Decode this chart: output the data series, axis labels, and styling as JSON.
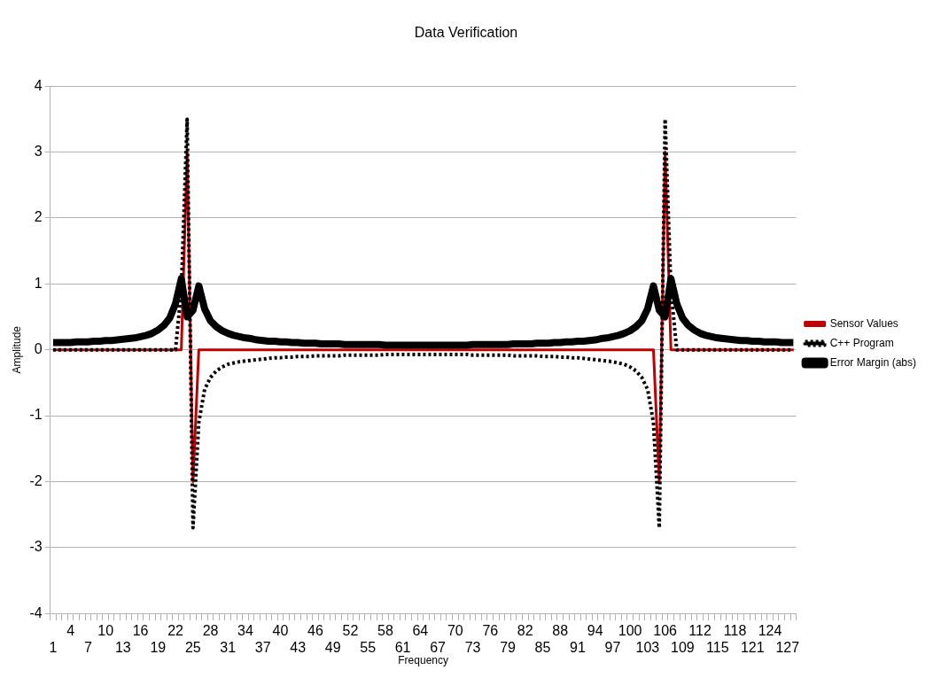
{
  "chart_data": {
    "type": "line",
    "title": "Data Verification",
    "xlabel": "Frequency",
    "ylabel": "Amplitude",
    "categories": [
      "1",
      null,
      null,
      "4",
      null,
      null,
      "7",
      null,
      null,
      "10",
      null,
      null,
      "13",
      null,
      null,
      "16",
      null,
      null,
      "19",
      null,
      null,
      "22",
      null,
      null,
      "25",
      null,
      null,
      "28",
      null,
      null,
      "31",
      null,
      null,
      "34",
      null,
      null,
      "37",
      null,
      null,
      "40",
      null,
      null,
      "43",
      null,
      null,
      "46",
      null,
      null,
      "49",
      null,
      null,
      "52",
      null,
      null,
      "55",
      null,
      null,
      "58",
      null,
      null,
      "61",
      null,
      null,
      "64",
      null,
      null,
      "67",
      null,
      null,
      "70",
      null,
      null,
      "73",
      null,
      null,
      "76",
      null,
      null,
      "79",
      null,
      null,
      "82",
      null,
      null,
      "85",
      null,
      null,
      "88",
      null,
      null,
      "91",
      null,
      null,
      "94",
      null,
      null,
      "97",
      null,
      null,
      "100",
      null,
      null,
      "103",
      null,
      null,
      "106",
      null,
      null,
      "109",
      null,
      null,
      "112",
      null,
      null,
      "115",
      null,
      null,
      "118",
      null,
      null,
      "121",
      null,
      null,
      "124",
      null,
      null,
      "127",
      null
    ],
    "ylim": [
      -4,
      4
    ],
    "yticks": [
      -4,
      -3,
      -2,
      -1,
      0,
      1,
      2,
      3,
      4
    ],
    "grid": "y",
    "legend": "right",
    "marker": "none",
    "series": [
      {
        "name": "Sensor Values",
        "color": "#c00000",
        "line_style": "solid",
        "values": [
          0,
          0,
          0,
          0,
          0,
          0,
          0,
          0,
          0,
          0,
          0,
          0,
          0,
          0,
          0,
          0,
          0,
          0,
          0,
          0,
          0,
          0,
          0,
          3,
          -2,
          0,
          0,
          0,
          0,
          0,
          0,
          0,
          0,
          0,
          0,
          0,
          0,
          0,
          0,
          0,
          0,
          0,
          0,
          0,
          0,
          0,
          0,
          0,
          0,
          0,
          0,
          0,
          0,
          0,
          0,
          0,
          0,
          0,
          0,
          0,
          0,
          0,
          0,
          0,
          0,
          0,
          0,
          0,
          0,
          0,
          0,
          0,
          0,
          0,
          0,
          0,
          0,
          0,
          0,
          0,
          0,
          0,
          0,
          0,
          0,
          0,
          0,
          0,
          0,
          0,
          0,
          0,
          0,
          0,
          0,
          0,
          0,
          0,
          0,
          0,
          0,
          0,
          0,
          0,
          -2,
          3,
          0,
          0,
          0,
          0,
          0,
          0,
          0,
          0,
          0,
          0,
          0,
          0,
          0,
          0,
          0,
          0,
          0,
          0,
          0,
          0,
          0,
          0
        ]
      },
      {
        "name": "C++ Program",
        "color": "#000000",
        "line_style": "dotted",
        "values": [
          0,
          0,
          0,
          0,
          0,
          0,
          0,
          0,
          0,
          0,
          0,
          0,
          0,
          0,
          0,
          0,
          0,
          0,
          0,
          0,
          0,
          0,
          0.9,
          3.5,
          -2.7,
          -1.1,
          -0.6,
          -0.42,
          -0.32,
          -0.26,
          -0.22,
          -0.2,
          -0.18,
          -0.17,
          -0.16,
          -0.15,
          -0.14,
          -0.13,
          -0.12,
          -0.12,
          -0.11,
          -0.11,
          -0.1,
          -0.1,
          -0.1,
          -0.09,
          -0.09,
          -0.09,
          -0.09,
          -0.09,
          -0.08,
          -0.08,
          -0.08,
          -0.08,
          -0.08,
          -0.08,
          -0.08,
          -0.07,
          -0.07,
          -0.07,
          -0.07,
          -0.07,
          -0.07,
          -0.07,
          -0.07,
          -0.07,
          -0.07,
          -0.07,
          -0.07,
          -0.07,
          -0.07,
          -0.07,
          -0.08,
          -0.08,
          -0.08,
          -0.08,
          -0.08,
          -0.08,
          -0.08,
          -0.09,
          -0.09,
          -0.09,
          -0.09,
          -0.09,
          -0.1,
          -0.1,
          -0.1,
          -0.11,
          -0.11,
          -0.12,
          -0.12,
          -0.13,
          -0.14,
          -0.15,
          -0.16,
          -0.17,
          -0.18,
          -0.2,
          -0.22,
          -0.26,
          -0.32,
          -0.42,
          -0.6,
          -1.1,
          -2.7,
          3.5,
          0.9,
          0,
          0,
          0,
          0,
          0,
          0,
          0,
          0,
          0,
          0,
          0,
          0,
          0,
          0,
          0,
          0,
          0,
          0,
          0,
          0,
          0
        ]
      },
      {
        "name": "Error Margin (abs)",
        "color": "#000000",
        "line_style": "solid",
        "values": [
          0.11,
          0.11,
          0.11,
          0.11,
          0.12,
          0.12,
          0.12,
          0.13,
          0.13,
          0.14,
          0.14,
          0.15,
          0.16,
          0.17,
          0.18,
          0.2,
          0.22,
          0.25,
          0.3,
          0.37,
          0.48,
          0.7,
          1.08,
          0.5,
          0.6,
          0.97,
          0.62,
          0.44,
          0.35,
          0.29,
          0.25,
          0.22,
          0.2,
          0.18,
          0.17,
          0.15,
          0.14,
          0.13,
          0.13,
          0.12,
          0.12,
          0.11,
          0.11,
          0.1,
          0.1,
          0.1,
          0.09,
          0.09,
          0.09,
          0.09,
          0.08,
          0.08,
          0.08,
          0.08,
          0.08,
          0.08,
          0.08,
          0.07,
          0.07,
          0.07,
          0.07,
          0.07,
          0.07,
          0.07,
          0.07,
          0.07,
          0.07,
          0.07,
          0.07,
          0.07,
          0.07,
          0.07,
          0.08,
          0.08,
          0.08,
          0.08,
          0.08,
          0.08,
          0.08,
          0.09,
          0.09,
          0.09,
          0.09,
          0.1,
          0.1,
          0.1,
          0.11,
          0.11,
          0.12,
          0.12,
          0.13,
          0.13,
          0.14,
          0.15,
          0.17,
          0.18,
          0.2,
          0.22,
          0.25,
          0.29,
          0.35,
          0.44,
          0.62,
          0.97,
          0.6,
          0.5,
          1.08,
          0.7,
          0.48,
          0.37,
          0.3,
          0.25,
          0.22,
          0.2,
          0.18,
          0.17,
          0.16,
          0.15,
          0.14,
          0.14,
          0.13,
          0.13,
          0.12,
          0.12,
          0.12,
          0.11,
          0.11,
          0.11
        ]
      }
    ]
  }
}
